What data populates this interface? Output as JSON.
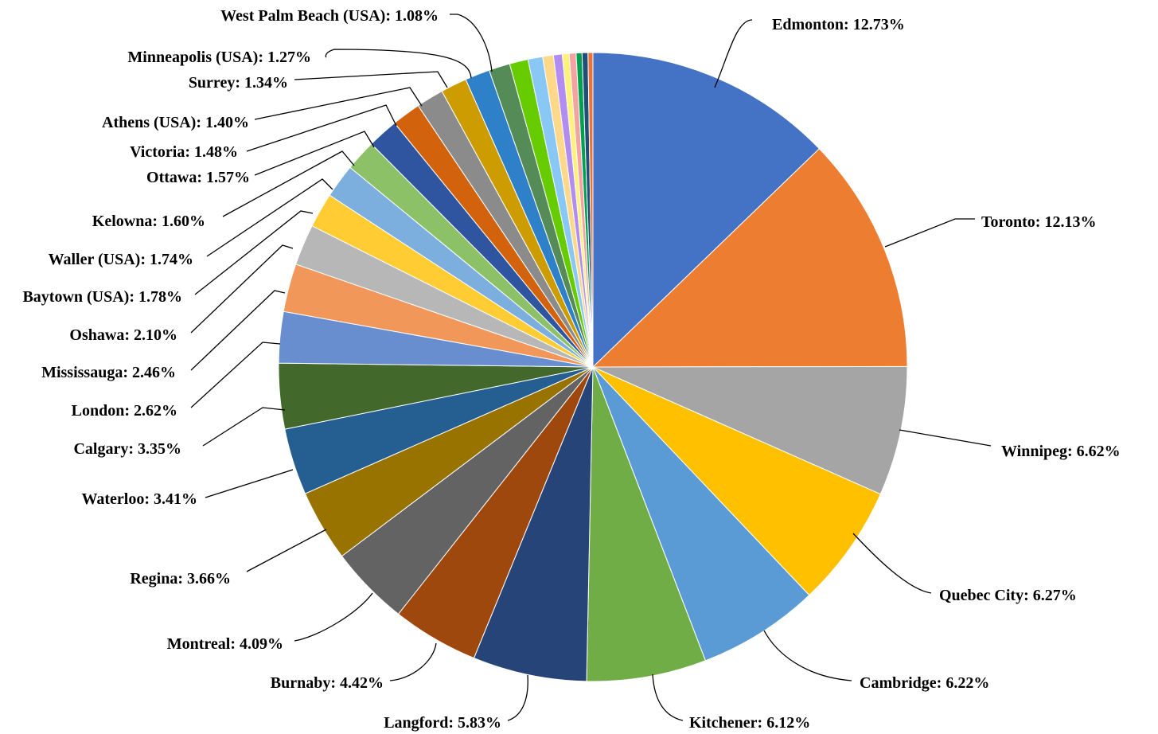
{
  "chart_data": {
    "type": "pie",
    "title": "",
    "start_angle_deg": 0,
    "direction": "clockwise",
    "slices": [
      {
        "label": "Edmonton",
        "value": 12.73,
        "color": "#4472C4"
      },
      {
        "label": "Toronto",
        "value": 12.13,
        "color": "#ED7D31"
      },
      {
        "label": "Winnipeg",
        "value": 6.62,
        "color": "#A5A5A5"
      },
      {
        "label": "Quebec City",
        "value": 6.27,
        "color": "#FFC000"
      },
      {
        "label": "Cambridge",
        "value": 6.22,
        "color": "#5B9BD5"
      },
      {
        "label": "Kitchener",
        "value": 6.12,
        "color": "#70AD47"
      },
      {
        "label": "Langford",
        "value": 5.83,
        "color": "#264478"
      },
      {
        "label": "Burnaby",
        "value": 4.42,
        "color": "#9E480E"
      },
      {
        "label": "Montreal",
        "value": 4.09,
        "color": "#636363"
      },
      {
        "label": "Regina",
        "value": 3.66,
        "color": "#997300"
      },
      {
        "label": "Waterloo",
        "value": 3.41,
        "color": "#255E91"
      },
      {
        "label": "Calgary",
        "value": 3.35,
        "color": "#43682B"
      },
      {
        "label": "London",
        "value": 2.62,
        "color": "#698ED0"
      },
      {
        "label": "Mississauga",
        "value": 2.46,
        "color": "#F1975A"
      },
      {
        "label": "Oshawa",
        "value": 2.1,
        "color": "#B7B7B7"
      },
      {
        "label": "Baytown (USA)",
        "value": 1.78,
        "color": "#FFCD33"
      },
      {
        "label": "Waller (USA)",
        "value": 1.74,
        "color": "#7CAFDD"
      },
      {
        "label": "Kelowna",
        "value": 1.6,
        "color": "#8CC168"
      },
      {
        "label": "Ottawa",
        "value": 1.57,
        "color": "#2F55A0"
      },
      {
        "label": "Victoria",
        "value": 1.48,
        "color": "#D2620C"
      },
      {
        "label": "Athens (USA)",
        "value": 1.4,
        "color": "#8B8B8B"
      },
      {
        "label": "Surrey",
        "value": 1.34,
        "color": "#CC9C00"
      },
      {
        "label": "Minneapolis (USA)",
        "value": 1.27,
        "color": "#2E80C8"
      },
      {
        "label": "West Palm Beach (USA)",
        "value": 1.08,
        "color": "#548B57"
      },
      {
        "label": "",
        "value": 0.95,
        "color": "#66CC00"
      },
      {
        "label": "",
        "value": 0.75,
        "color": "#89C8F5"
      },
      {
        "label": "",
        "value": 0.55,
        "color": "#FFD88A"
      },
      {
        "label": "",
        "value": 0.45,
        "color": "#B28CF0"
      },
      {
        "label": "",
        "value": 0.35,
        "color": "#FFF27A"
      },
      {
        "label": "",
        "value": 0.35,
        "color": "#F4A2A2"
      },
      {
        "label": "",
        "value": 0.3,
        "color": "#00A050"
      },
      {
        "label": "",
        "value": 0.3,
        "color": "#1F4E79"
      },
      {
        "label": "",
        "value": 0.25,
        "color": "#E8743B"
      }
    ]
  },
  "labels": [
    {
      "text": "Edmonton: 12.73%"
    },
    {
      "text": "Toronto: 12.13%"
    },
    {
      "text": "Winnipeg: 6.62%"
    },
    {
      "text": "Quebec City: 6.27%"
    },
    {
      "text": "Cambridge: 6.22%"
    },
    {
      "text": "Kitchener: 6.12%"
    },
    {
      "text": "Langford: 5.83%"
    },
    {
      "text": "Burnaby: 4.42%"
    },
    {
      "text": "Montreal: 4.09%"
    },
    {
      "text": "Regina: 3.66%"
    },
    {
      "text": "Waterloo: 3.41%"
    },
    {
      "text": "Calgary: 3.35%"
    },
    {
      "text": "London: 2.62%"
    },
    {
      "text": "Mississauga: 2.46%"
    },
    {
      "text": "Oshawa: 2.10%"
    },
    {
      "text": "Baytown (USA): 1.78%"
    },
    {
      "text": "Waller (USA): 1.74%"
    },
    {
      "text": "Kelowna: 1.60%"
    },
    {
      "text": "Ottawa: 1.57%"
    },
    {
      "text": "Victoria: 1.48%"
    },
    {
      "text": "Athens (USA): 1.40%"
    },
    {
      "text": "Surrey: 1.34%"
    },
    {
      "text": "Minneapolis (USA): 1.27%"
    },
    {
      "text": "West Palm Beach (USA): 1.08%"
    }
  ]
}
